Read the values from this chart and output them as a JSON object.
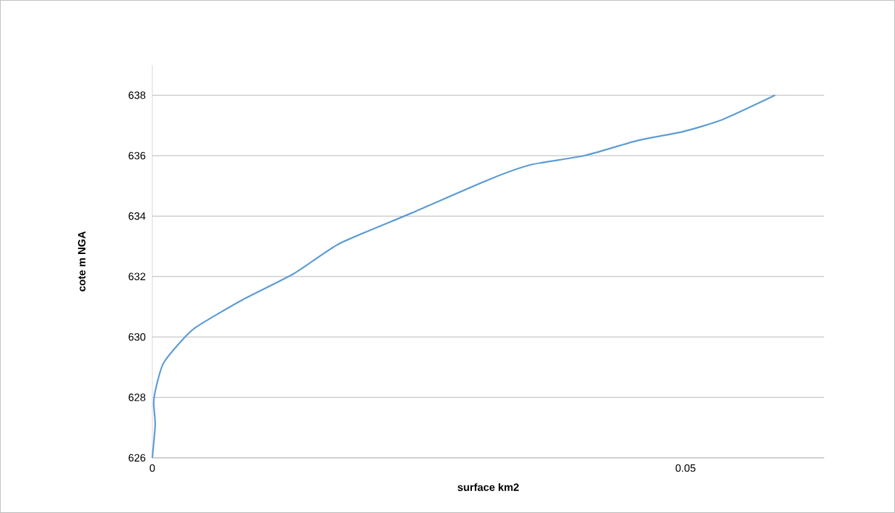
{
  "chart_data": {
    "type": "line",
    "xlabel": "surface km2",
    "ylabel": "cote m NGA",
    "x": [
      0,
      0.00027,
      0.00013,
      0.00033,
      0.001,
      0.0023,
      0.004,
      0.0083,
      0.0133,
      0.0176,
      0.0243,
      0.0315,
      0.0355,
      0.0405,
      0.0455,
      0.0498,
      0.0535,
      0.0584
    ],
    "series": [
      {
        "color": "#5b9bd5",
        "values": [
          626,
          627.1,
          627.8,
          628.3,
          629.1,
          629.7,
          630.3,
          631.2,
          632.1,
          633.1,
          634.1,
          635.2,
          635.7,
          636.0,
          636.5,
          636.8,
          637.2,
          638
        ]
      }
    ],
    "xlim": [
      0,
      0.063
    ],
    "ylim": [
      626,
      639
    ],
    "xticks": [
      0,
      0.05
    ],
    "yticks": [
      626,
      628,
      630,
      632,
      634,
      636,
      638
    ],
    "grid": "y",
    "marker": "none",
    "line_style": "solid"
  }
}
